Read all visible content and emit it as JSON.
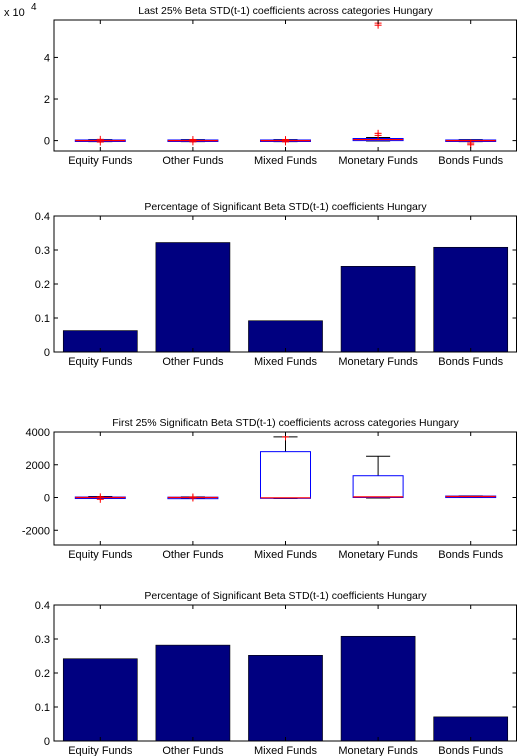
{
  "colors": {
    "bar_fill": "#000080",
    "box_stroke": "#0000ff",
    "median_line": "#ff0000",
    "outlier": "#ff0000",
    "axis": "#000000",
    "background": "#ffffff"
  },
  "chart_data": [
    {
      "type": "box",
      "title": "Last 25% Beta STD(t-1) coefficients across categories Hungary",
      "y_multiplier_label": "x 10",
      "y_multiplier_exponent": "4",
      "categories": [
        "Equity Funds",
        "Other Funds",
        "Mixed Funds",
        "Monetary Funds",
        "Bonds Funds"
      ],
      "ylim": [
        -0.5,
        5.8
      ],
      "yticks": [
        0,
        2,
        4
      ],
      "ytick_labels": [
        "0",
        "2",
        "4"
      ],
      "boxes": [
        {
          "q1": -0.03,
          "median": 0,
          "q3": 0.03,
          "whisker_low": -0.05,
          "whisker_high": 0.05,
          "outliers": [
            -0.07,
            0.06
          ]
        },
        {
          "q1": -0.03,
          "median": 0,
          "q3": 0.03,
          "whisker_low": -0.05,
          "whisker_high": 0.05,
          "outliers": [
            -0.06,
            0.05
          ]
        },
        {
          "q1": -0.03,
          "median": 0,
          "q3": 0.03,
          "whisker_low": -0.05,
          "whisker_high": 0.05,
          "outliers": [
            -0.06,
            0.05
          ]
        },
        {
          "q1": 0,
          "median": 0.05,
          "q3": 0.1,
          "whisker_low": -0.02,
          "whisker_high": 0.15,
          "outliers": [
            0.35,
            0.25,
            5.55,
            5.65
          ]
        },
        {
          "q1": -0.03,
          "median": 0,
          "q3": 0.03,
          "whisker_low": -0.05,
          "whisker_high": 0.05,
          "outliers": [
            -0.2,
            -0.12
          ]
        }
      ],
      "grid": false
    },
    {
      "type": "bar",
      "title": "Percentage of Significant Beta STD(t-1) coefficients Hungary",
      "categories": [
        "Equity Funds",
        "Other Funds",
        "Mixed Funds",
        "Monetary Funds",
        "Bonds Funds"
      ],
      "values": [
        0.063,
        0.322,
        0.092,
        0.252,
        0.308
      ],
      "ylim": [
        0,
        0.4
      ],
      "yticks": [
        0,
        0.1,
        0.2,
        0.3,
        0.4
      ],
      "ytick_labels": [
        "0",
        "0.1",
        "0.2",
        "0.3",
        "0.4"
      ],
      "grid": false
    },
    {
      "type": "box",
      "title": "First 25% Significatn Beta STD(t-1) coefficients across categories Hungary",
      "categories": [
        "Equity Funds",
        "Other Funds",
        "Mixed Funds",
        "Monetary Funds",
        "Bonds Funds"
      ],
      "ylim": [
        -2900,
        4000
      ],
      "yticks": [
        -2000,
        0,
        2000,
        4000
      ],
      "ytick_labels": [
        "-2000",
        "0",
        "2000",
        "4000"
      ],
      "boxes": [
        {
          "q1": -30,
          "median": 0,
          "q3": 30,
          "whisker_low": -60,
          "whisker_high": 60,
          "outliers": [
            -110,
            40
          ]
        },
        {
          "q1": -20,
          "median": 0,
          "q3": 20,
          "whisker_low": -40,
          "whisker_high": 40,
          "outliers": [
            -30,
            30
          ]
        },
        {
          "q1": -50,
          "median": -20,
          "q3": 2800,
          "whisker_low": -60,
          "whisker_high": 3700,
          "outliers": [
            3700
          ]
        },
        {
          "q1": 0,
          "median": 40,
          "q3": 1330,
          "whisker_low": -30,
          "whisker_high": 2520,
          "outliers": []
        },
        {
          "q1": 30,
          "median": 60,
          "q3": 90,
          "whisker_low": 20,
          "whisker_high": 100,
          "outliers": []
        }
      ],
      "grid": false
    },
    {
      "type": "bar",
      "title": "Percentage of Significant Beta STD(t-1) coefficients Hungary",
      "categories": [
        "Equity Funds",
        "Other Funds",
        "Mixed Funds",
        "Monetary Funds",
        "Bonds Funds"
      ],
      "values": [
        0.242,
        0.282,
        0.252,
        0.308,
        0.071
      ],
      "ylim": [
        0,
        0.4
      ],
      "yticks": [
        0,
        0.1,
        0.2,
        0.3,
        0.4
      ],
      "ytick_labels": [
        "0",
        "0.1",
        "0.2",
        "0.3",
        "0.4"
      ],
      "grid": false
    }
  ]
}
